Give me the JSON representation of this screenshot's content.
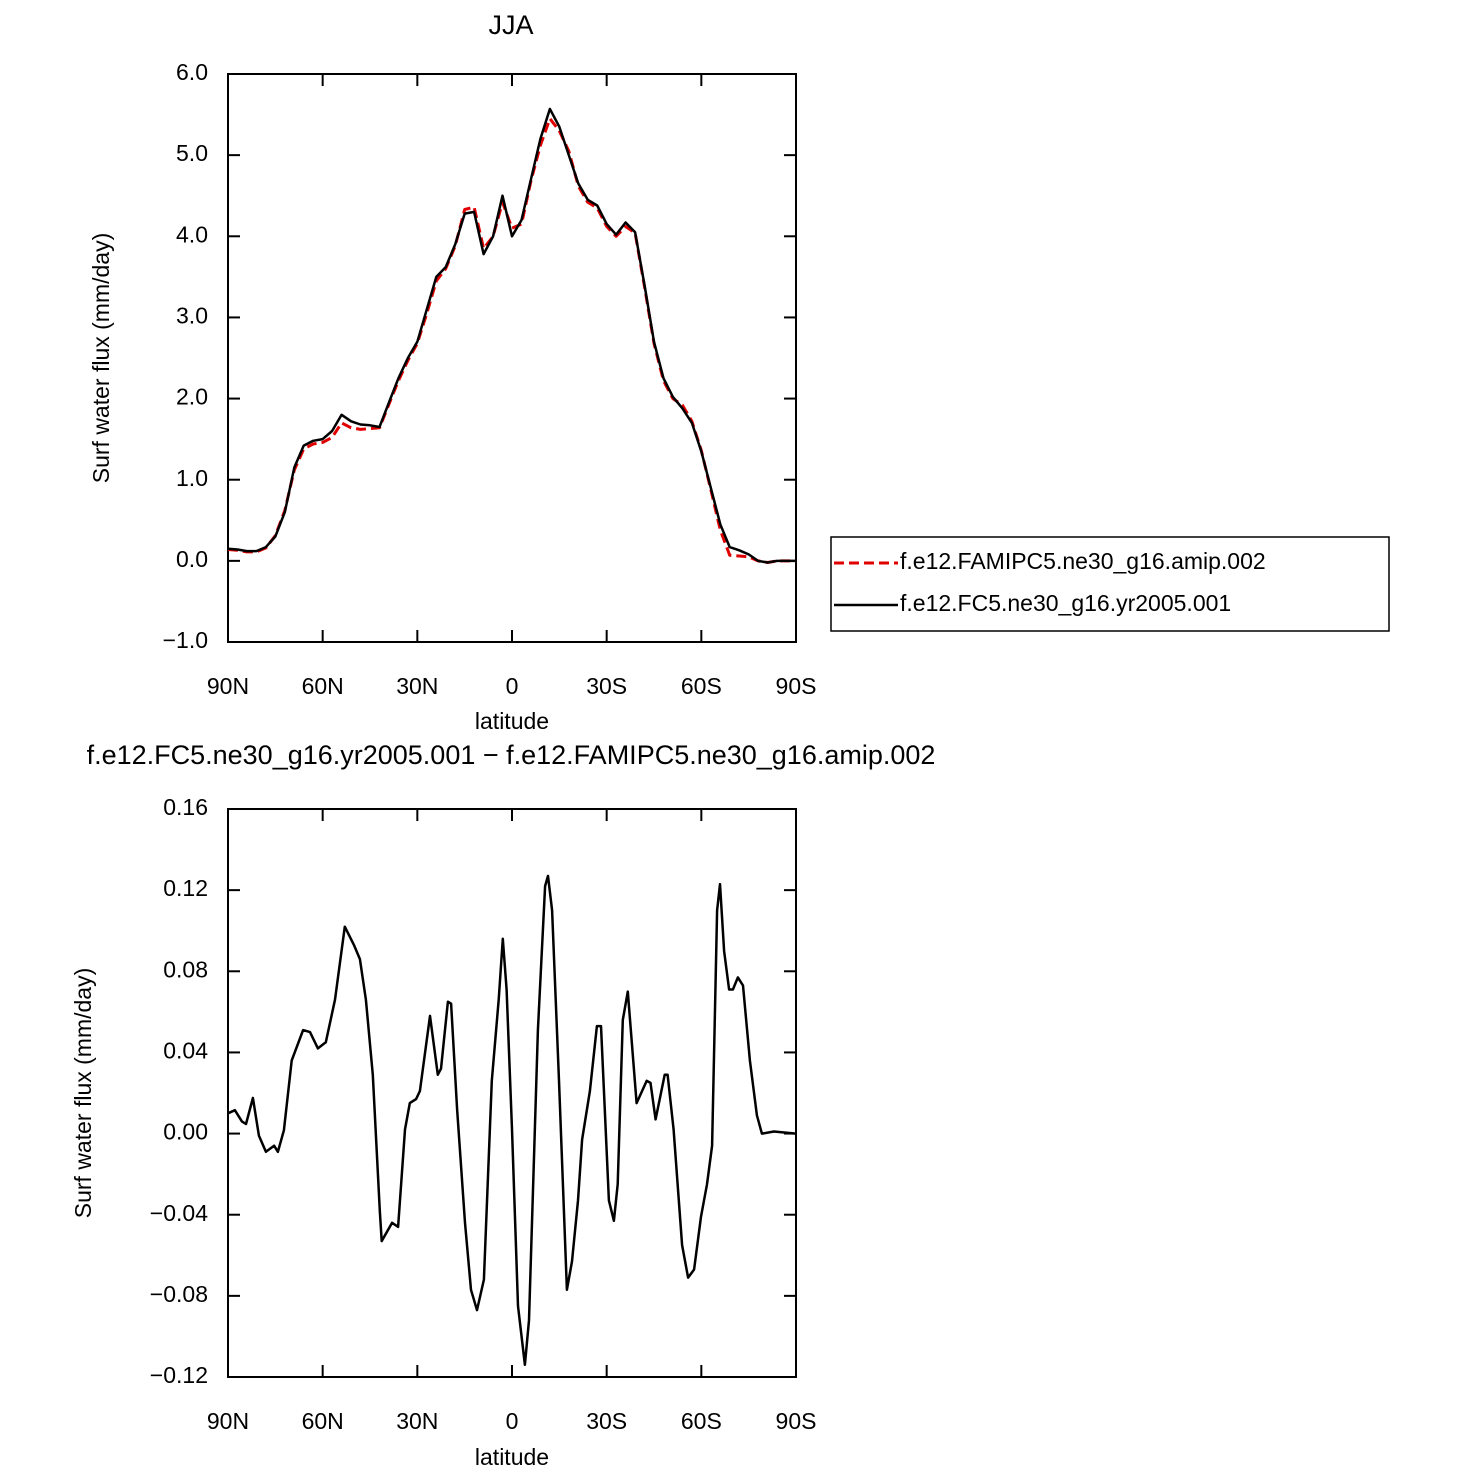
{
  "chart_data": [
    {
      "type": "line",
      "title": "JJA",
      "y_label": "Surf water flux (mm/day)",
      "x_label": "latitude",
      "x": [
        90,
        87,
        84,
        81,
        78,
        75,
        72,
        69,
        66,
        63,
        60,
        57,
        54,
        51,
        48,
        45,
        42,
        39,
        36,
        33,
        30,
        27,
        24,
        21,
        18,
        15,
        12,
        9,
        6,
        3,
        0,
        -3,
        -6,
        -9,
        -12,
        -15,
        -18,
        -21,
        -24,
        -27,
        -30,
        -33,
        -36,
        -39,
        -42,
        -45,
        -48,
        -51,
        -54,
        -57,
        -60,
        -63,
        -66,
        -69,
        -72,
        -75,
        -78,
        -81,
        -84,
        -87,
        -90
      ],
      "series": [
        {
          "name": "f.e12.FAMIPC5.ne30_g16.amip.002",
          "color": "#e00000",
          "dash": true,
          "values": [
            0.14,
            0.13,
            0.11,
            0.11,
            0.16,
            0.31,
            0.62,
            1.12,
            1.38,
            1.44,
            1.46,
            1.52,
            1.7,
            1.64,
            1.62,
            1.63,
            1.64,
            1.93,
            2.22,
            2.47,
            2.68,
            3.05,
            3.45,
            3.6,
            3.88,
            4.33,
            4.36,
            3.85,
            4.0,
            4.42,
            4.1,
            4.15,
            4.68,
            5.12,
            5.45,
            5.3,
            5.05,
            4.62,
            4.42,
            4.35,
            4.12,
            4.0,
            4.12,
            4.04,
            3.38,
            2.68,
            2.22,
            2.0,
            1.92,
            1.72,
            1.36,
            0.88,
            0.38,
            0.07,
            0.06,
            0.05,
            0.0,
            -0.02,
            0.0,
            0.0,
            0.0
          ]
        },
        {
          "name": "f.e12.FC5.ne30_g16.yr2005.001",
          "color": "#000000",
          "dash": false,
          "values": [
            0.15,
            0.14,
            0.12,
            0.12,
            0.17,
            0.3,
            0.6,
            1.15,
            1.42,
            1.48,
            1.5,
            1.6,
            1.8,
            1.72,
            1.68,
            1.67,
            1.65,
            1.95,
            2.25,
            2.5,
            2.7,
            3.1,
            3.5,
            3.62,
            3.9,
            4.28,
            4.3,
            3.78,
            4.0,
            4.5,
            4.0,
            4.2,
            4.7,
            5.2,
            5.57,
            5.35,
            5.0,
            4.65,
            4.45,
            4.38,
            4.15,
            4.02,
            4.17,
            4.05,
            3.4,
            2.7,
            2.25,
            2.02,
            1.88,
            1.7,
            1.35,
            0.9,
            0.45,
            0.17,
            0.13,
            0.08,
            0.0,
            -0.02,
            0.0,
            0.0,
            0.0
          ]
        }
      ],
      "xlim": [
        90,
        -90
      ],
      "xticks": [
        {
          "value": 90,
          "label": "90N"
        },
        {
          "value": 60,
          "label": "60N"
        },
        {
          "value": 30,
          "label": "30N"
        },
        0,
        {
          "value": -30,
          "label": "30S"
        },
        {
          "value": -60,
          "label": "60S"
        },
        {
          "value": -90,
          "label": "90S"
        }
      ],
      "ylim": [
        -1,
        6
      ],
      "yticks": [
        {
          "value": -1,
          "label": "−1.0"
        },
        {
          "value": 0,
          "label": "0.0"
        },
        {
          "value": 1,
          "label": "1.0"
        },
        {
          "value": 2,
          "label": "2.0"
        },
        {
          "value": 3,
          "label": "3.0"
        },
        {
          "value": 4,
          "label": "4.0"
        },
        {
          "value": 5,
          "label": "5.0"
        },
        {
          "value": 6,
          "label": "6.0"
        }
      ],
      "legend": "right"
    },
    {
      "type": "line",
      "title": "f.e12.FC5.ne30_g16.yr2005.001 − f.e12.FAMIPC5.ne30_g16.amip.002",
      "y_label": "Surf water flux (mm/day)",
      "x_label": "latitude",
      "x": [
        90,
        87.8,
        85.6,
        84.3,
        82.1,
        80.2,
        78.0,
        75.4,
        74.2,
        72.3,
        69.8,
        66.2,
        64.0,
        61.5,
        59.0,
        56.1,
        53.0,
        50.1,
        48.2,
        46.3,
        44.1,
        41.9,
        41.3,
        38.0,
        36.1,
        33.9,
        32.4,
        30.4,
        29.2,
        26.0,
        23.5,
        22.5,
        20.3,
        19.3,
        17.4,
        14.9,
        13.0,
        11.1,
        8.9,
        6.4,
        4.2,
        2.9,
        1.7,
        0,
        -1.9,
        -4.1,
        -5.4,
        -8.2,
        -10.5,
        -11.4,
        -12.7,
        -14.9,
        -17.4,
        -19.0,
        -20.9,
        -22.2,
        -24.7,
        -26.9,
        -28.2,
        -30.7,
        -32.3,
        -33.5,
        -35.1,
        -36.7,
        -39.5,
        -42.7,
        -43.9,
        -45.5,
        -48.4,
        -49.3,
        -51.2,
        -53.9,
        -55.8,
        -57.7,
        -59.9,
        -61.8,
        -63.4,
        -65.0,
        -65.9,
        -67.2,
        -68.8,
        -70.0,
        -71.6,
        -73.2,
        -75.4,
        -77.6,
        -79.2,
        -83.0,
        -90
      ],
      "values": [
        0.01,
        0.0115,
        0.006,
        0.0047,
        0.0176,
        -0.001,
        -0.009,
        -0.006,
        -0.009,
        0.0016,
        0.036,
        0.051,
        0.05,
        0.042,
        0.045,
        0.066,
        0.102,
        0.093,
        0.086,
        0.066,
        0.029,
        -0.038,
        -0.053,
        -0.044,
        -0.046,
        0.002,
        0.015,
        0.017,
        0.021,
        0.058,
        0.029,
        0.032,
        0.065,
        0.064,
        0.012,
        -0.044,
        -0.077,
        -0.087,
        -0.072,
        0.026,
        0.066,
        0.096,
        0.071,
        0.002,
        -0.085,
        -0.114,
        -0.092,
        0.051,
        0.122,
        0.127,
        0.11,
        0.026,
        -0.077,
        -0.063,
        -0.033,
        -0.003,
        0.021,
        0.053,
        0.053,
        -0.033,
        -0.043,
        -0.025,
        0.056,
        0.07,
        0.015,
        0.026,
        0.025,
        0.007,
        0.029,
        0.029,
        0.002,
        -0.055,
        -0.071,
        -0.067,
        -0.041,
        -0.025,
        -0.006,
        0.11,
        0.123,
        0.09,
        0.071,
        0.071,
        0.077,
        0.073,
        0.036,
        0.009,
        0.0,
        0.001,
        0.0
      ],
      "color": "#000000",
      "xlim": [
        90,
        -90
      ],
      "xticks": [
        {
          "value": 90,
          "label": "90N"
        },
        {
          "value": 60,
          "label": "60N"
        },
        {
          "value": 30,
          "label": "30N"
        },
        0,
        {
          "value": -30,
          "label": "30S"
        },
        {
          "value": -60,
          "label": "60S"
        },
        {
          "value": -90,
          "label": "90S"
        }
      ],
      "ylim": [
        -0.12,
        0.16
      ],
      "yticks": [
        {
          "value": -0.12,
          "label": "−0.12"
        },
        {
          "value": -0.08,
          "label": "−0.08"
        },
        {
          "value": -0.04,
          "label": "−0.04"
        },
        {
          "value": 0,
          "label": "0.00"
        },
        0.04,
        0.08,
        0.12,
        0.16
      ]
    }
  ]
}
